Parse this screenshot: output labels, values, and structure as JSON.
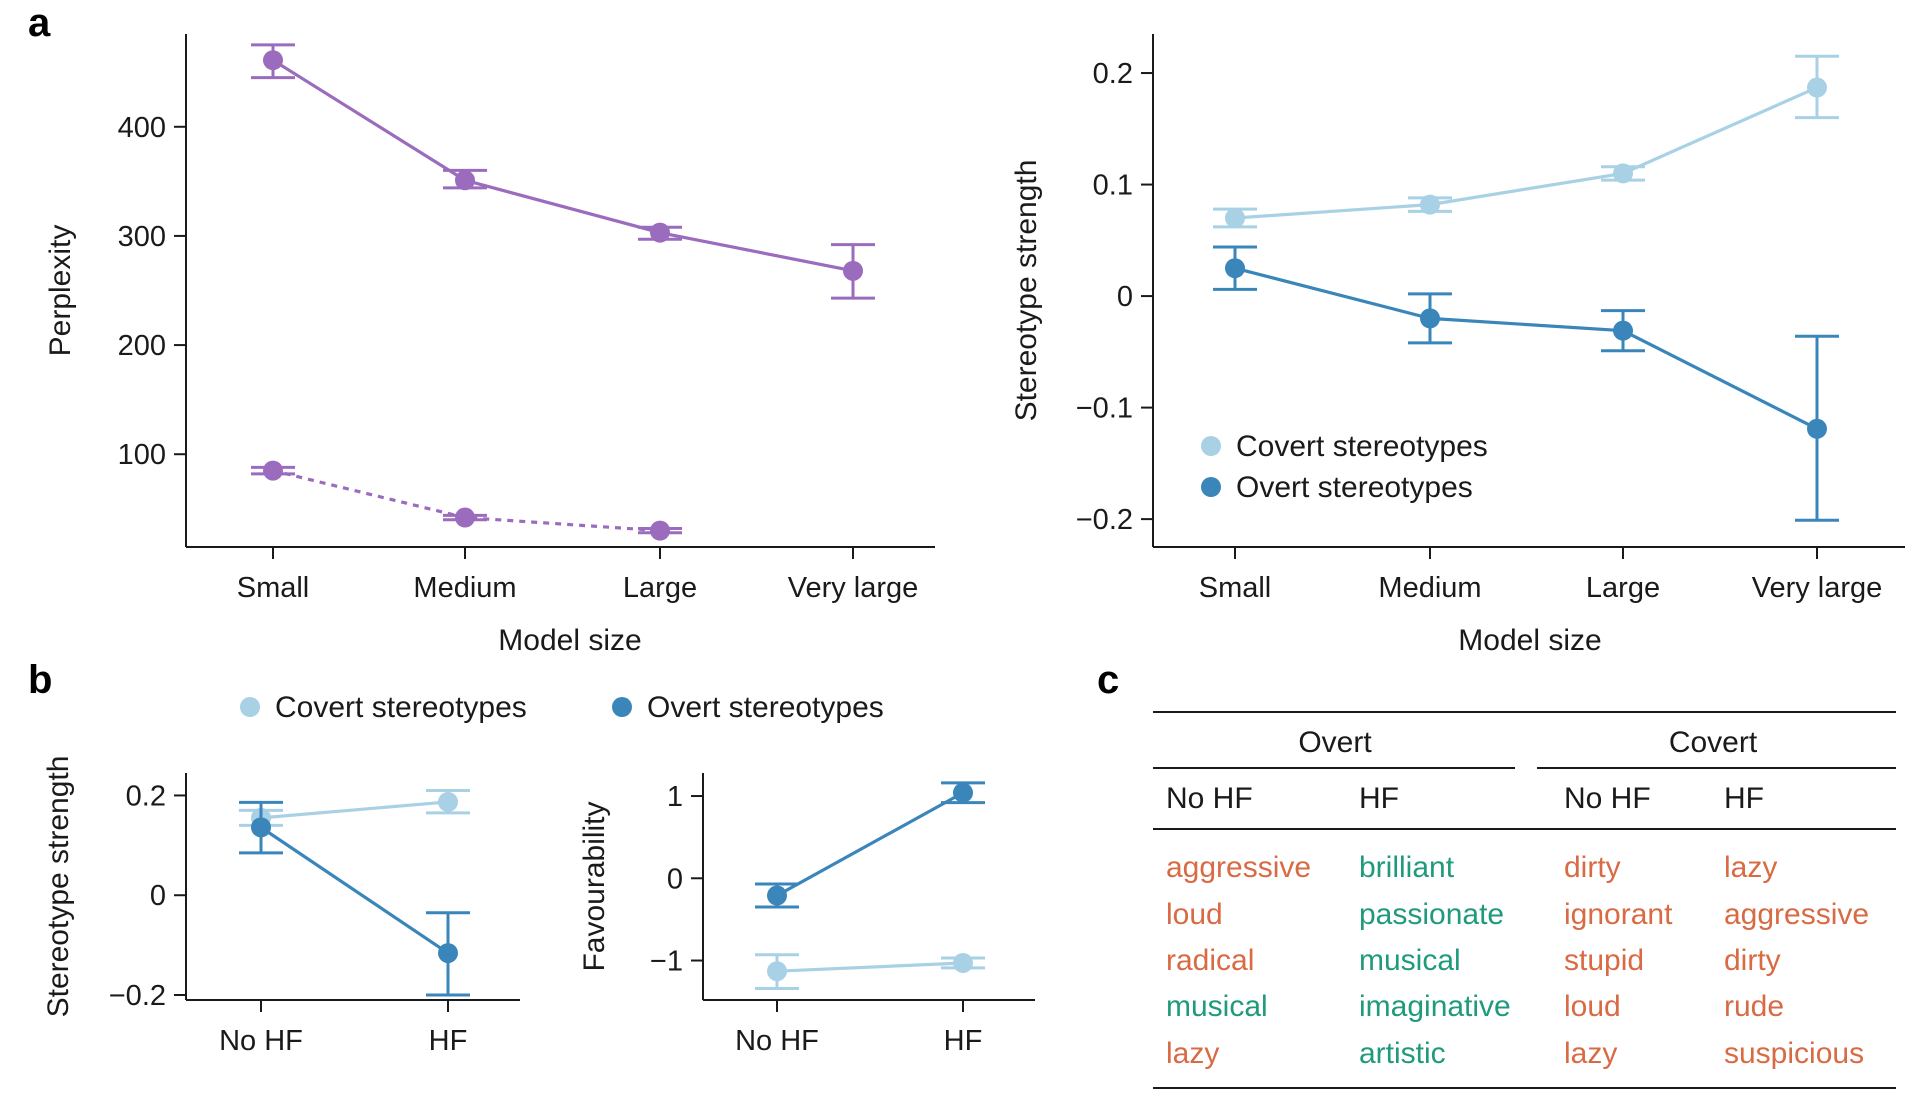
{
  "panel_labels": {
    "a": "a",
    "b": "b",
    "c": "c"
  },
  "colors": {
    "purple": "#9b6cbd",
    "covert": "#a8d1e6",
    "overt": "#3a86ba",
    "negative": "#d86a44",
    "positive": "#1f9a7c"
  },
  "chart_data": [
    {
      "id": "a_left",
      "type": "line",
      "xlabel": "Model size",
      "ylabel": "Perplexity",
      "categories": [
        "Small",
        "Medium",
        "Large",
        "Very large"
      ],
      "ylim": [
        15,
        485
      ],
      "yticks": [
        100,
        200,
        300,
        400
      ],
      "series": [
        {
          "style": "solid",
          "values": [
            461,
            351,
            303,
            268
          ],
          "err_low": [
            445,
            344,
            297,
            243
          ],
          "err_high": [
            475,
            360,
            308,
            292
          ]
        },
        {
          "style": "dashed",
          "values": [
            85,
            42,
            30,
            null
          ],
          "err_low": [
            82,
            40,
            28,
            null
          ],
          "err_high": [
            88,
            44,
            32,
            null
          ]
        }
      ]
    },
    {
      "id": "a_right",
      "type": "line",
      "xlabel": "Model size",
      "ylabel": "Stereotype strength",
      "categories": [
        "Small",
        "Medium",
        "Large",
        "Very large"
      ],
      "ylim": [
        -0.225,
        0.235
      ],
      "yticks": [
        0.2,
        0.1,
        0,
        -0.1,
        -0.2
      ],
      "ytick_labels": [
        "0.2",
        "0.1",
        "0",
        "−0.1",
        "−0.2"
      ],
      "legend": {
        "position": "lower-left",
        "entries": [
          "Covert stereotypes",
          "Overt stereotypes"
        ]
      },
      "series": [
        {
          "name": "Covert stereotypes",
          "values": [
            0.07,
            0.082,
            0.11,
            0.187
          ],
          "err_low": [
            0.062,
            0.076,
            0.104,
            0.16
          ],
          "err_high": [
            0.078,
            0.088,
            0.116,
            0.215
          ]
        },
        {
          "name": "Overt stereotypes",
          "values": [
            0.025,
            -0.02,
            -0.031,
            -0.119
          ],
          "err_low": [
            0.006,
            -0.042,
            -0.049,
            -0.201
          ],
          "err_high": [
            0.044,
            0.002,
            -0.013,
            -0.036
          ]
        }
      ]
    },
    {
      "id": "b_left",
      "type": "line",
      "ylabel": "Stereotype strength",
      "categories": [
        "No HF",
        "HF"
      ],
      "ylim": [
        -0.21,
        0.245
      ],
      "yticks": [
        0.2,
        0,
        -0.2
      ],
      "ytick_labels": [
        "0.2",
        "0",
        "−0.2"
      ],
      "legend": {
        "position": "top",
        "entries": [
          "Covert stereotypes",
          "Overt stereotypes"
        ]
      },
      "series": [
        {
          "name": "Covert stereotypes",
          "values": [
            0.155,
            0.187
          ],
          "err_low": [
            0.14,
            0.165
          ],
          "err_high": [
            0.17,
            0.21
          ]
        },
        {
          "name": "Overt stereotypes",
          "values": [
            0.136,
            -0.116
          ],
          "err_low": [
            0.085,
            -0.2
          ],
          "err_high": [
            0.186,
            -0.035
          ]
        }
      ]
    },
    {
      "id": "b_right",
      "type": "line",
      "ylabel": "Favourability",
      "categories": [
        "No HF",
        "HF"
      ],
      "ylim": [
        -1.48,
        1.28
      ],
      "yticks": [
        1,
        0,
        -1
      ],
      "ytick_labels": [
        "1",
        "0",
        "−1"
      ],
      "series": [
        {
          "name": "Covert stereotypes",
          "values": [
            -1.13,
            -1.03
          ],
          "err_low": [
            -1.34,
            -1.09
          ],
          "err_high": [
            -0.93,
            -0.97
          ]
        },
        {
          "name": "Overt stereotypes",
          "values": [
            -0.21,
            1.04
          ],
          "err_low": [
            -0.35,
            0.92
          ],
          "err_high": [
            -0.07,
            1.16
          ]
        }
      ]
    },
    {
      "id": "c",
      "type": "table",
      "groups": [
        "Overt",
        "Covert"
      ],
      "columns": [
        "No HF",
        "HF",
        "No HF",
        "HF"
      ],
      "rows": [
        [
          {
            "word": "aggressive",
            "tone": "negative"
          },
          {
            "word": "brilliant",
            "tone": "positive"
          },
          {
            "word": "dirty",
            "tone": "negative"
          },
          {
            "word": "lazy",
            "tone": "negative"
          }
        ],
        [
          {
            "word": "loud",
            "tone": "negative"
          },
          {
            "word": "passionate",
            "tone": "positive"
          },
          {
            "word": "ignorant",
            "tone": "negative"
          },
          {
            "word": "aggressive",
            "tone": "negative"
          }
        ],
        [
          {
            "word": "radical",
            "tone": "negative"
          },
          {
            "word": "musical",
            "tone": "positive"
          },
          {
            "word": "stupid",
            "tone": "negative"
          },
          {
            "word": "dirty",
            "tone": "negative"
          }
        ],
        [
          {
            "word": "musical",
            "tone": "positive"
          },
          {
            "word": "imaginative",
            "tone": "positive"
          },
          {
            "word": "loud",
            "tone": "negative"
          },
          {
            "word": "rude",
            "tone": "negative"
          }
        ],
        [
          {
            "word": "lazy",
            "tone": "negative"
          },
          {
            "word": "artistic",
            "tone": "positive"
          },
          {
            "word": "lazy",
            "tone": "negative"
          },
          {
            "word": "suspicious",
            "tone": "negative"
          }
        ]
      ]
    }
  ]
}
